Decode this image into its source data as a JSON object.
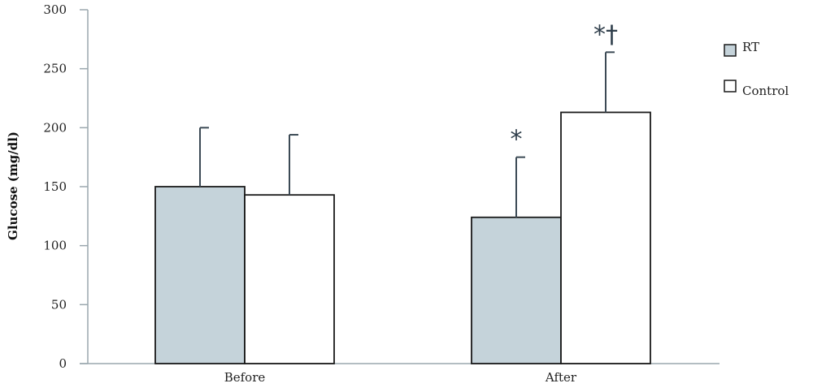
{
  "chart_data": {
    "type": "bar",
    "categories": [
      "Before",
      "After"
    ],
    "series": [
      {
        "name": "RT",
        "values": [
          150,
          124
        ],
        "errors": [
          50,
          51
        ],
        "color": "#c5d3da"
      },
      {
        "name": "Control",
        "values": [
          143,
          213
        ],
        "errors": [
          51,
          51
        ],
        "color": "#ffffff"
      }
    ],
    "ylabel": "Glucose (mg/dl)",
    "xlabel": "",
    "ylim": [
      0,
      300
    ],
    "yticks": [
      0,
      50,
      100,
      150,
      200,
      250,
      300
    ],
    "grid": false,
    "legend_position": "right",
    "annotations": [
      {
        "category": "After",
        "series": "RT",
        "text": "*"
      },
      {
        "category": "After",
        "series": "Control",
        "text": "*†"
      }
    ],
    "colors": {
      "axis": "#9aa7ae",
      "bar_stroke": "#1a1a1a",
      "annotation": "#2e3d4a"
    }
  }
}
